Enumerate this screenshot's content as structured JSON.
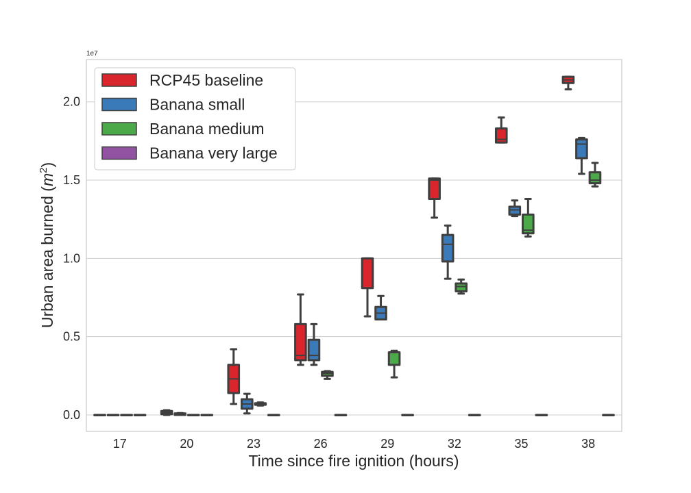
{
  "chart_data": {
    "type": "box",
    "xlabel": "Time since fire ignition (hours)",
    "ylabel_text": "Urban area burned (",
    "ylabel_math": "m",
    "ylabel_sup": "2",
    "ylabel_close": ")",
    "y_offset_label": "1e7",
    "y_scale": 10000000,
    "ylim": [
      -0.105,
      2.27
    ],
    "yticks": [
      0.0,
      0.5,
      1.0,
      1.5,
      2.0
    ],
    "ytick_labels": [
      "0.0",
      "0.5",
      "1.0",
      "1.5",
      "2.0"
    ],
    "categories": [
      "17",
      "20",
      "23",
      "26",
      "29",
      "32",
      "35",
      "38"
    ],
    "grid": true,
    "legend_position": "top-left",
    "series": [
      {
        "name": "RCP45 baseline",
        "color": "#d8262c",
        "boxes": [
          {
            "min": 0.0,
            "q1": 0.0,
            "median": 0.0,
            "q3": 0.0,
            "max": 0.0
          },
          {
            "min": 0.0,
            "q1": 0.005,
            "median": 0.015,
            "q3": 0.025,
            "max": 0.03
          },
          {
            "min": 0.07,
            "q1": 0.14,
            "median": 0.23,
            "q3": 0.32,
            "max": 0.42
          },
          {
            "min": 0.32,
            "q1": 0.35,
            "median": 0.38,
            "q3": 0.58,
            "max": 0.77
          },
          {
            "min": 0.63,
            "q1": 0.81,
            "median": 1.0,
            "q3": 1.0,
            "max": 1.0
          },
          {
            "min": 1.26,
            "q1": 1.38,
            "median": 1.5,
            "q3": 1.51,
            "max": 1.51
          },
          {
            "min": 1.74,
            "q1": 1.74,
            "median": 1.76,
            "q3": 1.83,
            "max": 1.9
          },
          {
            "min": 2.08,
            "q1": 2.12,
            "median": 2.14,
            "q3": 2.16,
            "max": 2.16
          }
        ]
      },
      {
        "name": "Banana small",
        "color": "#3b7ab8",
        "boxes": [
          {
            "min": 0.0,
            "q1": 0.0,
            "median": 0.0,
            "q3": 0.0,
            "max": 0.0
          },
          {
            "min": 0.0,
            "q1": 0.0,
            "median": 0.005,
            "q3": 0.01,
            "max": 0.012
          },
          {
            "min": 0.01,
            "q1": 0.04,
            "median": 0.07,
            "q3": 0.1,
            "max": 0.135
          },
          {
            "min": 0.32,
            "q1": 0.35,
            "median": 0.38,
            "q3": 0.48,
            "max": 0.58
          },
          {
            "min": 0.61,
            "q1": 0.61,
            "median": 0.65,
            "q3": 0.69,
            "max": 0.76
          },
          {
            "min": 0.87,
            "q1": 0.98,
            "median": 1.09,
            "q3": 1.15,
            "max": 1.21
          },
          {
            "min": 1.27,
            "q1": 1.28,
            "median": 1.31,
            "q3": 1.33,
            "max": 1.37
          },
          {
            "min": 1.54,
            "q1": 1.64,
            "median": 1.73,
            "q3": 1.76,
            "max": 1.77
          }
        ]
      },
      {
        "name": "Banana medium",
        "color": "#4ca94a",
        "boxes": [
          {
            "min": 0.0,
            "q1": 0.0,
            "median": 0.0,
            "q3": 0.0,
            "max": 0.0
          },
          {
            "min": 0.0,
            "q1": 0.0,
            "median": 0.0,
            "q3": 0.0,
            "max": 0.0
          },
          {
            "min": 0.06,
            "q1": 0.065,
            "median": 0.07,
            "q3": 0.075,
            "max": 0.08
          },
          {
            "min": 0.23,
            "q1": 0.25,
            "median": 0.265,
            "q3": 0.275,
            "max": 0.28
          },
          {
            "min": 0.24,
            "q1": 0.32,
            "median": 0.4,
            "q3": 0.4,
            "max": 0.41
          },
          {
            "min": 0.775,
            "q1": 0.79,
            "median": 0.82,
            "q3": 0.84,
            "max": 0.865
          },
          {
            "min": 1.14,
            "q1": 1.16,
            "median": 1.18,
            "q3": 1.28,
            "max": 1.38
          },
          {
            "min": 1.46,
            "q1": 1.48,
            "median": 1.5,
            "q3": 1.55,
            "max": 1.61
          }
        ]
      },
      {
        "name": "Banana very large",
        "color": "#9353a3",
        "boxes": [
          {
            "min": 0.0,
            "q1": 0.0,
            "median": 0.0,
            "q3": 0.0,
            "max": 0.0
          },
          {
            "min": 0.0,
            "q1": 0.0,
            "median": 0.0,
            "q3": 0.0,
            "max": 0.0
          },
          {
            "min": 0.0,
            "q1": 0.0,
            "median": 0.0,
            "q3": 0.0,
            "max": 0.0
          },
          {
            "min": 0.0,
            "q1": 0.0,
            "median": 0.0,
            "q3": 0.0,
            "max": 0.0
          },
          {
            "min": 0.0,
            "q1": 0.0,
            "median": 0.0,
            "q3": 0.0,
            "max": 0.0
          },
          {
            "min": 0.0,
            "q1": 0.0,
            "median": 0.0,
            "q3": 0.0,
            "max": 0.0
          },
          {
            "min": 0.0,
            "q1": 0.0,
            "median": 0.0,
            "q3": 0.0,
            "max": 0.0
          },
          {
            "min": 0.0,
            "q1": 0.0,
            "median": 0.0,
            "q3": 0.0,
            "max": 0.0
          }
        ]
      }
    ]
  }
}
